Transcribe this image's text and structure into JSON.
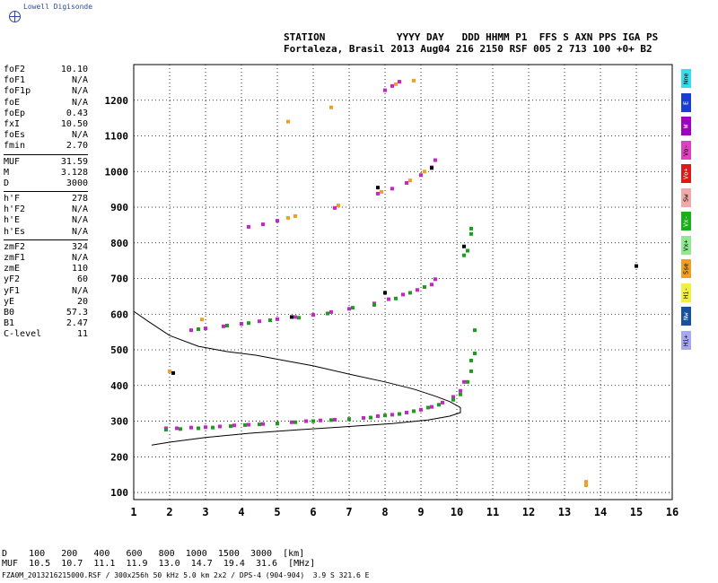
{
  "logo": {
    "name": "Lowell Digisonde",
    "icon": "globe-icon"
  },
  "header": {
    "line1": "STATION            YYYY DAY   DDD HHMM P1  FFS S AXN PPS IGA PS",
    "line2": "Fortaleza, Brasil 2013 Aug04 216 2150 RSF 005 2 713 100 +0+ B2"
  },
  "params": {
    "group1": [
      {
        "label": "foF2",
        "value": "10.10"
      },
      {
        "label": "foF1",
        "value": "N/A"
      },
      {
        "label": "foF1p",
        "value": "N/A"
      },
      {
        "label": "foE",
        "value": "N/A"
      },
      {
        "label": "foEp",
        "value": "0.43"
      },
      {
        "label": "fxI",
        "value": "10.50"
      },
      {
        "label": "foEs",
        "value": "N/A"
      },
      {
        "label": "fmin",
        "value": "2.70"
      }
    ],
    "group2": [
      {
        "label": "MUF",
        "value": "31.59"
      },
      {
        "label": "M",
        "value": "3.128"
      },
      {
        "label": "D",
        "value": "3000"
      }
    ],
    "group3": [
      {
        "label": "h'F",
        "value": "278"
      },
      {
        "label": "h'F2",
        "value": "N/A"
      },
      {
        "label": "h'E",
        "value": "N/A"
      },
      {
        "label": "h'Es",
        "value": "N/A"
      }
    ],
    "group4": [
      {
        "label": "zmF2",
        "value": "324"
      },
      {
        "label": "zmF1",
        "value": "N/A"
      },
      {
        "label": "zmE",
        "value": "110"
      },
      {
        "label": "yF2",
        "value": "60"
      },
      {
        "label": "yF1",
        "value": "N/A"
      },
      {
        "label": "yE",
        "value": "20"
      },
      {
        "label": "B0",
        "value": "57.3"
      },
      {
        "label": "B1",
        "value": "2.47"
      },
      {
        "label": "C-level",
        "value": "11"
      }
    ]
  },
  "legend": [
    {
      "label": "Nne",
      "color": "#33e0e8"
    },
    {
      "label": "E",
      "color": "#1a3fd0"
    },
    {
      "label": "W",
      "color": "#a000c0"
    },
    {
      "label": "Vo-",
      "color": "#e040c0"
    },
    {
      "label": "Vo+",
      "color": "#e01818"
    },
    {
      "label": "Sw",
      "color": "#f0a8a8"
    },
    {
      "label": "Vx-",
      "color": "#18b018"
    },
    {
      "label": "Vx+",
      "color": "#90e890"
    },
    {
      "label": "Sse",
      "color": "#f0a020"
    },
    {
      "label": "Hi-",
      "color": "#f0f040"
    },
    {
      "label": "Nw",
      "color": "#1850a0"
    },
    {
      "label": "Hi+",
      "color": "#a8a8f0"
    }
  ],
  "dist_table": {
    "row1": "D    100   200   400   600   800  1000  1500  3000  [km]",
    "row2": "MUF  10.5  10.7  11.1  11.9  13.0  14.7  19.4  31.6  [MHz]"
  },
  "footer": "FZA0M_2013216215000.RSF / 300x256h 50 kHz 5.0 km 2x2 / DPS-4 (904-904)  3.9 S 321.6 E",
  "chart_data": {
    "type": "scatter",
    "title": "",
    "xlabel": "",
    "ylabel": "",
    "xlim": [
      1,
      16
    ],
    "ylim": [
      80,
      1300
    ],
    "xticks": [
      1,
      2,
      3,
      4,
      5,
      6,
      7,
      8,
      9,
      10,
      11,
      12,
      13,
      14,
      15,
      16
    ],
    "yticks": [
      100,
      200,
      300,
      400,
      500,
      600,
      700,
      800,
      900,
      1000,
      1100,
      1200
    ],
    "grid": true,
    "series": [
      {
        "color": "#cc22cc",
        "points": [
          [
            1.9,
            280
          ],
          [
            2.2,
            280
          ],
          [
            2.6,
            282
          ],
          [
            3.0,
            283
          ],
          [
            3.4,
            285
          ],
          [
            3.8,
            288
          ],
          [
            4.2,
            290
          ],
          [
            4.6,
            292
          ],
          [
            5.0,
            294
          ],
          [
            5.4,
            297
          ],
          [
            5.8,
            300
          ],
          [
            6.2,
            302
          ],
          [
            6.6,
            304
          ],
          [
            7.0,
            306
          ],
          [
            7.4,
            309
          ],
          [
            7.8,
            314
          ],
          [
            8.2,
            318
          ],
          [
            8.6,
            324
          ],
          [
            9.0,
            332
          ],
          [
            9.3,
            340
          ],
          [
            9.6,
            352
          ],
          [
            9.9,
            368
          ],
          [
            10.1,
            385
          ],
          [
            10.2,
            410
          ],
          [
            2.6,
            555
          ],
          [
            3.0,
            560
          ],
          [
            3.5,
            566
          ],
          [
            4.0,
            573
          ],
          [
            4.5,
            580
          ],
          [
            5.0,
            586
          ],
          [
            5.5,
            592
          ],
          [
            6.0,
            598
          ],
          [
            6.5,
            606
          ],
          [
            7.0,
            615
          ],
          [
            7.7,
            630
          ],
          [
            8.1,
            642
          ],
          [
            8.5,
            655
          ],
          [
            8.9,
            668
          ],
          [
            9.3,
            683
          ],
          [
            9.4,
            698
          ],
          [
            4.2,
            845
          ],
          [
            4.6,
            852
          ],
          [
            5.0,
            862
          ],
          [
            6.6,
            898
          ],
          [
            7.8,
            938
          ],
          [
            8.2,
            952
          ],
          [
            8.6,
            968
          ],
          [
            9.0,
            990
          ],
          [
            9.3,
            1012
          ],
          [
            9.4,
            1032
          ],
          [
            8.0,
            1228
          ],
          [
            8.2,
            1240
          ],
          [
            8.4,
            1252
          ]
        ]
      },
      {
        "color": "#18a018",
        "points": [
          [
            1.9,
            276
          ],
          [
            2.3,
            278
          ],
          [
            2.8,
            280
          ],
          [
            3.2,
            282
          ],
          [
            3.7,
            286
          ],
          [
            4.1,
            289
          ],
          [
            4.5,
            291
          ],
          [
            5.0,
            293
          ],
          [
            5.5,
            297
          ],
          [
            6.0,
            300
          ],
          [
            6.5,
            303
          ],
          [
            7.0,
            305
          ],
          [
            7.6,
            310
          ],
          [
            8.0,
            316
          ],
          [
            8.4,
            320
          ],
          [
            8.8,
            328
          ],
          [
            9.2,
            338
          ],
          [
            9.5,
            346
          ],
          [
            9.9,
            360
          ],
          [
            10.1,
            375
          ],
          [
            10.3,
            410
          ],
          [
            10.4,
            440
          ],
          [
            10.4,
            470
          ],
          [
            10.5,
            490
          ],
          [
            10.5,
            555
          ],
          [
            2.8,
            558
          ],
          [
            3.6,
            568
          ],
          [
            4.2,
            575
          ],
          [
            4.8,
            583
          ],
          [
            5.6,
            590
          ],
          [
            6.4,
            602
          ],
          [
            7.1,
            618
          ],
          [
            7.7,
            626
          ],
          [
            8.3,
            644
          ],
          [
            8.7,
            660
          ],
          [
            9.1,
            676
          ],
          [
            10.2,
            765
          ],
          [
            10.3,
            778
          ],
          [
            10.4,
            825
          ],
          [
            10.4,
            840
          ]
        ]
      },
      {
        "color": "#f0a020",
        "points": [
          [
            2.0,
            440
          ],
          [
            2.9,
            585
          ],
          [
            5.3,
            870
          ],
          [
            5.5,
            875
          ],
          [
            6.7,
            905
          ],
          [
            7.9,
            943
          ],
          [
            8.7,
            975
          ],
          [
            9.1,
            1000
          ],
          [
            8.3,
            1245
          ],
          [
            8.8,
            1255
          ],
          [
            6.5,
            1180
          ],
          [
            5.3,
            1140
          ],
          [
            13.6,
            120
          ],
          [
            13.6,
            130
          ]
        ]
      },
      {
        "color": "#000000",
        "points": [
          [
            2.1,
            435
          ],
          [
            7.8,
            955
          ],
          [
            8.0,
            660
          ],
          [
            9.3,
            1010
          ],
          [
            15.0,
            735
          ],
          [
            5.4,
            592
          ],
          [
            10.2,
            790
          ]
        ]
      }
    ],
    "profile": {
      "color": "#000000",
      "points": [
        [
          1.0,
          608
        ],
        [
          1.4,
          580
        ],
        [
          2.0,
          540
        ],
        [
          2.8,
          510
        ],
        [
          3.6,
          495
        ],
        [
          4.4,
          485
        ],
        [
          5.2,
          470
        ],
        [
          6.0,
          455
        ],
        [
          7.0,
          432
        ],
        [
          8.0,
          410
        ],
        [
          8.8,
          390
        ],
        [
          9.4,
          370
        ],
        [
          9.8,
          355
        ],
        [
          10.1,
          338
        ],
        [
          10.1,
          324
        ],
        [
          9.8,
          314
        ],
        [
          9.2,
          303
        ],
        [
          8.2,
          293
        ],
        [
          7.0,
          285
        ],
        [
          5.6,
          276
        ],
        [
          4.2,
          266
        ],
        [
          3.0,
          254
        ],
        [
          2.0,
          241
        ],
        [
          1.5,
          233
        ]
      ]
    }
  }
}
